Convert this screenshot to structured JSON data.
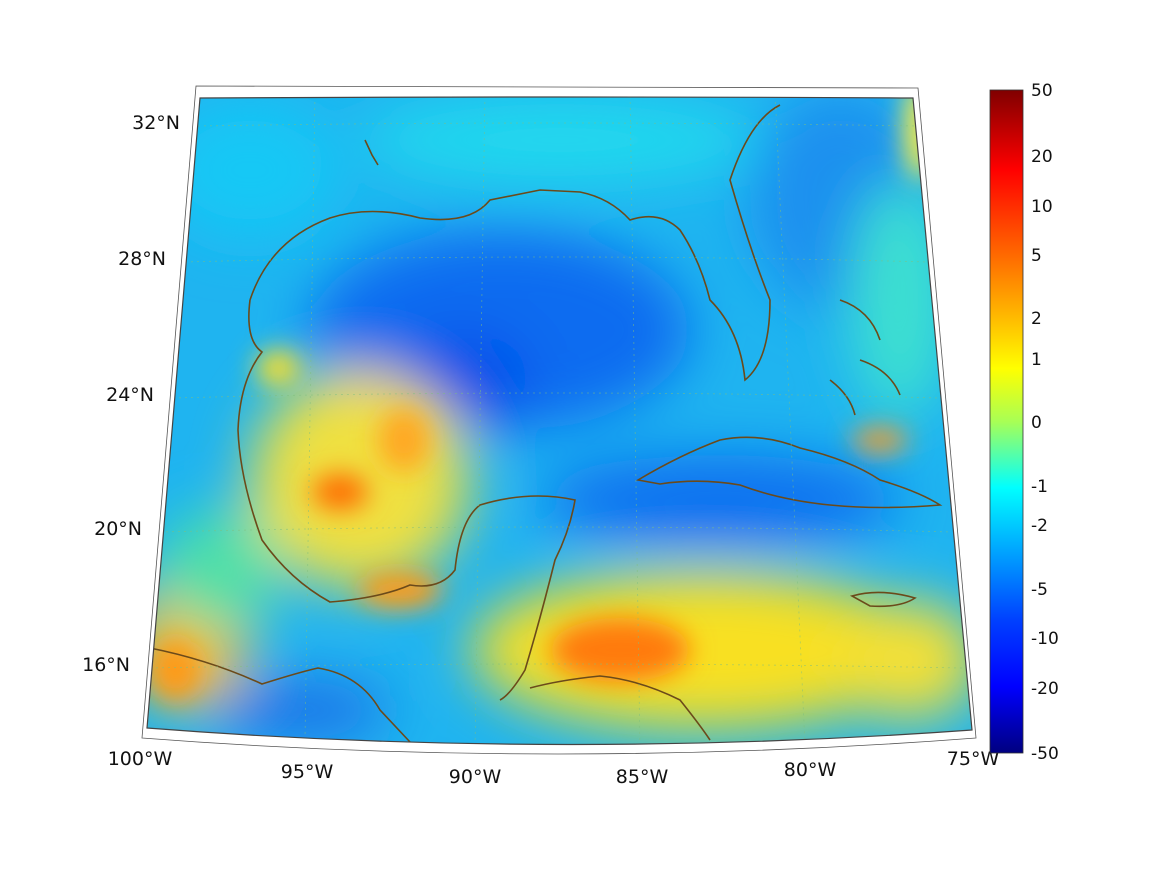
{
  "map": {
    "lat_labels": [
      {
        "lat": 32,
        "label": "32°N"
      },
      {
        "lat": 28,
        "label": "28°N"
      },
      {
        "lat": 24,
        "label": "24°N"
      },
      {
        "lat": 20,
        "label": "20°N"
      },
      {
        "lat": 16,
        "label": "16°N"
      }
    ],
    "lon_labels": [
      {
        "lon": -100,
        "label": "100°W"
      },
      {
        "lon": -95,
        "label": "95°W"
      },
      {
        "lon": -90,
        "label": "90°W"
      },
      {
        "lon": -85,
        "label": "85°W"
      },
      {
        "lon": -80,
        "label": "80°W"
      },
      {
        "lon": -75,
        "label": "75°W"
      }
    ],
    "coastline_color": "#6b4a1a",
    "gridlines": true
  },
  "colorbar": {
    "tick_labels": [
      "50",
      "20",
      "10",
      "5",
      "2",
      "1",
      "0",
      "-1",
      "-2",
      "-5",
      "-10",
      "-20",
      "-50"
    ],
    "colors": [
      "#800000",
      "#ff0000",
      "#ff6a00",
      "#ffc000",
      "#ffff00",
      "#a8ff55",
      "#00ffff",
      "#00a0ff",
      "#0040ff",
      "#0000ff",
      "#000080"
    ]
  }
}
